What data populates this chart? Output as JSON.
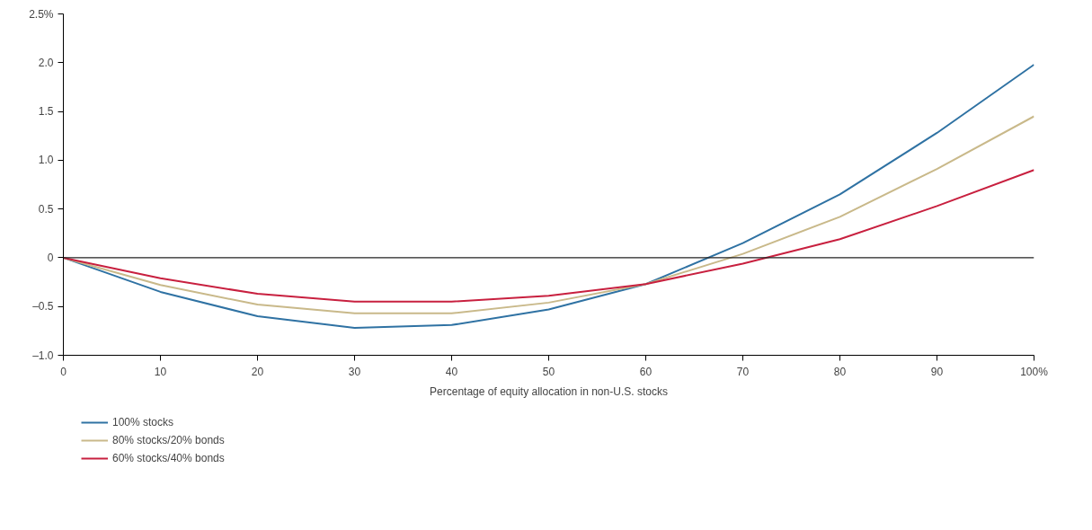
{
  "chart_data": {
    "type": "line",
    "xlabel": "Percentage of equity allocation in non-U.S. stocks",
    "x": [
      0,
      10,
      20,
      30,
      40,
      50,
      60,
      70,
      80,
      90,
      100
    ],
    "series": [
      {
        "name": "100% stocks",
        "color": "#2f72a3",
        "values": [
          0,
          -0.35,
          -0.6,
          -0.72,
          -0.69,
          -0.53,
          -0.27,
          0.15,
          0.65,
          1.28,
          1.98
        ]
      },
      {
        "name": "80% stocks/20% bonds",
        "color": "#c9b98a",
        "values": [
          0,
          -0.28,
          -0.48,
          -0.57,
          -0.57,
          -0.46,
          -0.27,
          0.04,
          0.42,
          0.91,
          1.45
        ]
      },
      {
        "name": "60% stocks/40% bonds",
        "color": "#c8203f",
        "values": [
          0,
          -0.21,
          -0.37,
          -0.45,
          -0.45,
          -0.39,
          -0.27,
          -0.06,
          0.19,
          0.53,
          0.9
        ]
      }
    ],
    "xlim": [
      0,
      100
    ],
    "ylim": [
      -1.0,
      2.5
    ],
    "xticks": [
      0,
      10,
      20,
      30,
      40,
      50,
      60,
      70,
      80,
      90,
      {
        "value": 100,
        "label": "100%"
      }
    ],
    "yticks": [
      {
        "value": -1.0,
        "label": "–1.0"
      },
      {
        "value": -0.5,
        "label": "–0.5"
      },
      0,
      {
        "value": 0.5,
        "label": "0.5"
      },
      {
        "value": 1.0,
        "label": "1.0"
      },
      {
        "value": 1.5,
        "label": "1.5"
      },
      {
        "value": 2.0,
        "label": "2.0"
      },
      {
        "value": 2.5,
        "label": "2.5%"
      }
    ],
    "ref_lines": [
      {
        "axis": "y",
        "value": 0,
        "color": "#222222"
      }
    ],
    "grid": false,
    "legend": "bottom left",
    "marker": "none",
    "line_style": "solid"
  }
}
